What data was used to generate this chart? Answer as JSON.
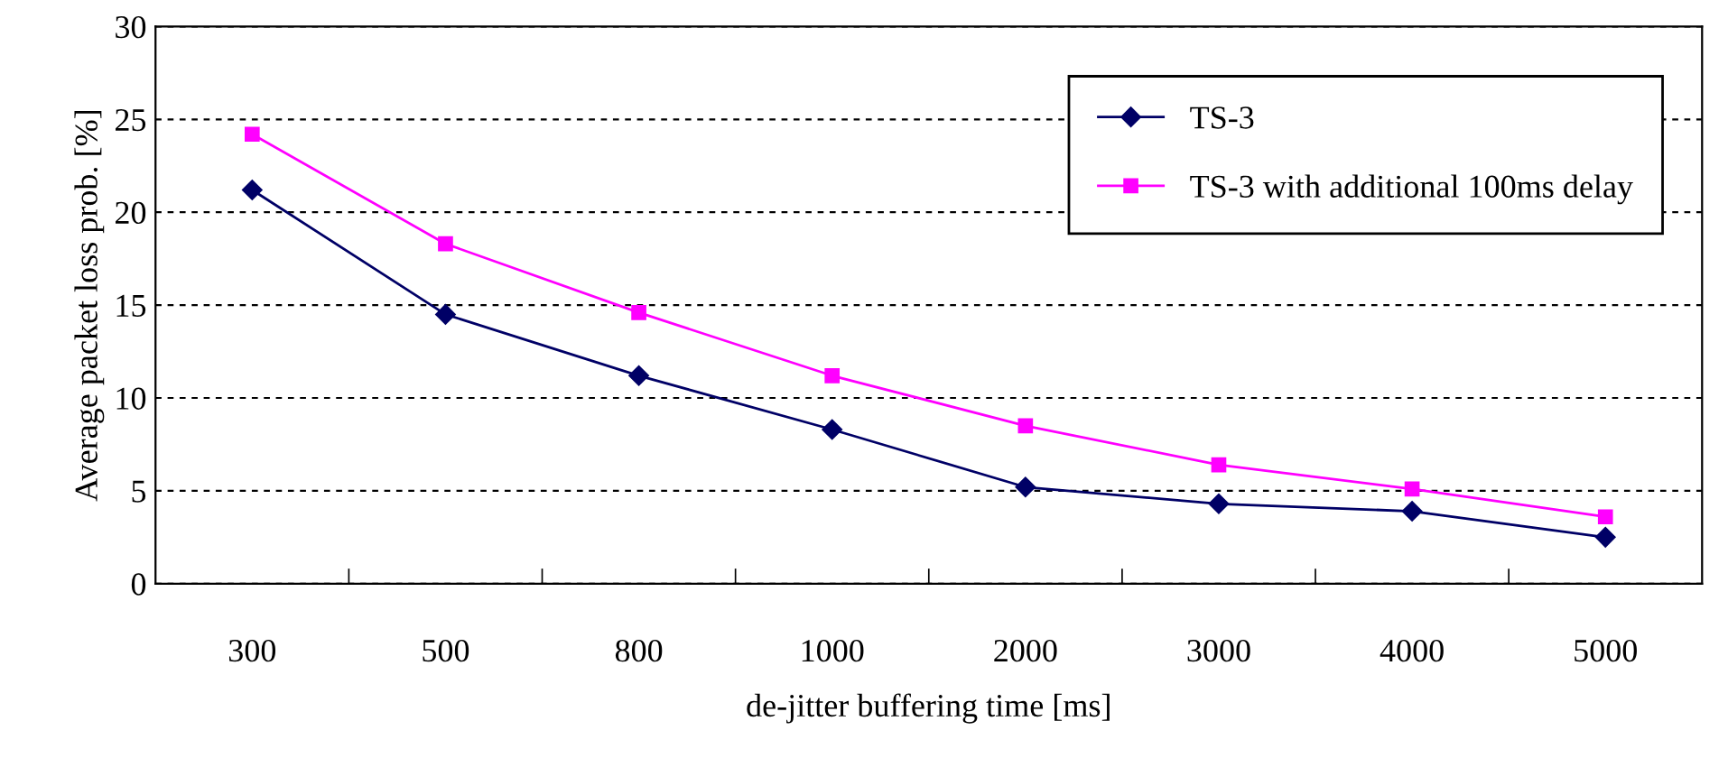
{
  "chart_data": {
    "type": "line",
    "xlabel": "de-jitter buffering time [ms]",
    "ylabel": "Average packet loss prob. [%]",
    "categories": [
      "300",
      "500",
      "800",
      "1000",
      "2000",
      "3000",
      "4000",
      "5000"
    ],
    "series": [
      {
        "name": "TS-3",
        "color": "#000066",
        "marker": "diamond",
        "values": [
          21.2,
          14.5,
          11.2,
          8.3,
          5.2,
          4.3,
          3.9,
          2.5
        ]
      },
      {
        "name": "TS-3 with additional 100ms delay",
        "color": "#ff00ff",
        "marker": "square",
        "values": [
          24.2,
          18.3,
          14.6,
          11.2,
          8.5,
          6.4,
          5.1,
          3.6
        ]
      }
    ],
    "ylim": [
      0,
      30
    ],
    "yticks": [
      0,
      5,
      10,
      15,
      20,
      25,
      30
    ],
    "grid": "y",
    "legend": "top right",
    "line_style": "solid"
  }
}
